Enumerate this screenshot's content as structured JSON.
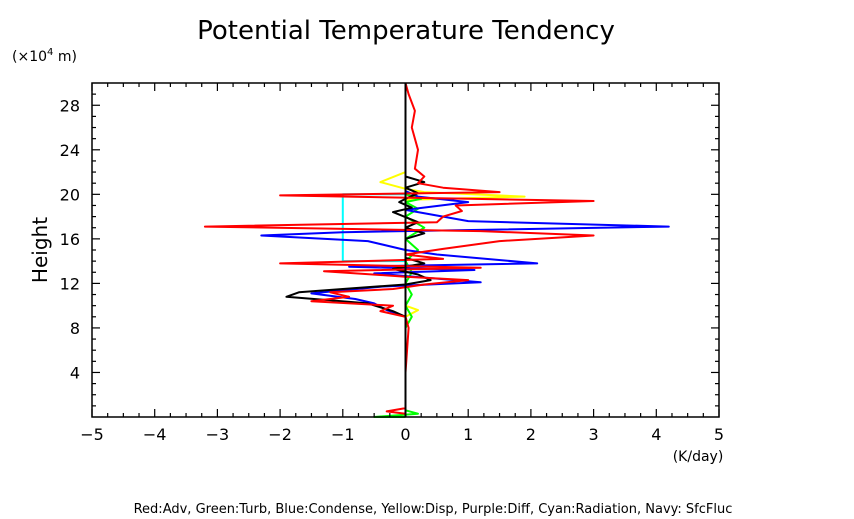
{
  "chart_data": {
    "type": "line",
    "title": "Potential Temperature Tendency",
    "ylabel": "Height",
    "yunit_base": "(×10",
    "yunit_exp": "4",
    "yunit_tail": " m)",
    "xlabel": "(K/day)",
    "xlim": [
      -5,
      5
    ],
    "ylim": [
      0,
      30
    ],
    "xticks": [
      -5,
      -4,
      -3,
      -2,
      -1,
      0,
      1,
      2,
      3,
      4,
      5
    ],
    "xtick_labels": [
      "−5",
      "−4",
      "−3",
      "−2",
      "−1",
      "0",
      "1",
      "2",
      "3",
      "4",
      "5"
    ],
    "yticks": [
      4,
      8,
      12,
      16,
      20,
      24,
      28
    ],
    "ytick_labels": [
      "4",
      "8",
      "12",
      "16",
      "20",
      "24",
      "28"
    ],
    "grid": false,
    "legend_text": "Red:Adv, Green:Turb, Blue:Condense, Yellow:Disp, Purple:Diff, Cyan:Radiation, Navy: SfcFluc",
    "series": [
      {
        "color": "#ffff00",
        "points": [
          [
            0,
            0
          ],
          [
            0,
            9
          ],
          [
            0.2,
            9.6
          ],
          [
            0,
            10
          ],
          [
            0,
            19.5
          ],
          [
            1.9,
            19.8
          ],
          [
            0.3,
            20.2
          ],
          [
            0,
            20.5
          ],
          [
            -0.4,
            21.1
          ],
          [
            0,
            22
          ],
          [
            0,
            30
          ]
        ]
      },
      {
        "color": "#00ff00",
        "points": [
          [
            0,
            0
          ],
          [
            -0.5,
            0
          ],
          [
            0.2,
            0.3
          ],
          [
            0,
            0.6
          ],
          [
            0,
            8
          ],
          [
            0.1,
            9
          ],
          [
            0,
            10
          ],
          [
            0.1,
            11
          ],
          [
            0,
            12
          ],
          [
            0.1,
            13
          ],
          [
            0,
            14
          ],
          [
            0.2,
            15
          ],
          [
            0,
            16
          ],
          [
            0.3,
            17
          ],
          [
            0,
            18
          ],
          [
            0.2,
            18.7
          ],
          [
            0,
            19.3
          ],
          [
            0.25,
            19.6
          ],
          [
            0,
            20
          ],
          [
            0,
            30
          ]
        ]
      },
      {
        "color": "#00ffff",
        "points": [
          [
            0,
            14
          ],
          [
            -1,
            14
          ],
          [
            -1,
            20
          ],
          [
            0,
            20
          ]
        ]
      },
      {
        "color": "#0000ff",
        "points": [
          [
            0,
            0
          ],
          [
            0,
            9
          ],
          [
            -0.3,
            9.6
          ],
          [
            -0.5,
            10.2
          ],
          [
            -0.8,
            10.6
          ],
          [
            -1.5,
            11.1
          ],
          [
            -0.4,
            11.7
          ],
          [
            1.2,
            12.1
          ],
          [
            -0.5,
            12.9
          ],
          [
            1.1,
            13.2
          ],
          [
            -0.9,
            13.5
          ],
          [
            2.1,
            13.8
          ],
          [
            0.5,
            14.6
          ],
          [
            0,
            15
          ],
          [
            -0.6,
            15.8
          ],
          [
            -2.3,
            16.3
          ],
          [
            -1,
            16.6
          ],
          [
            4.2,
            17.1
          ],
          [
            1,
            17.6
          ],
          [
            0.4,
            18.2
          ],
          [
            0,
            18.6
          ],
          [
            1,
            19.3
          ],
          [
            0.2,
            19.8
          ],
          [
            0,
            20.3
          ],
          [
            0,
            30
          ]
        ]
      },
      {
        "color": "#000000",
        "points": [
          [
            0,
            0
          ],
          [
            0,
            9
          ],
          [
            -0.2,
            9.5
          ],
          [
            -0.6,
            10.2
          ],
          [
            -1.9,
            10.8
          ],
          [
            -1.7,
            11.2
          ],
          [
            -1,
            11.5
          ],
          [
            0,
            11.9
          ],
          [
            0.4,
            12.3
          ],
          [
            0.2,
            12.8
          ],
          [
            -0.2,
            13.3
          ],
          [
            0.3,
            13.8
          ],
          [
            0,
            14.3
          ],
          [
            0,
            16
          ],
          [
            0.3,
            16.5
          ],
          [
            0,
            17
          ],
          [
            0.2,
            17.5
          ],
          [
            -0.2,
            18.4
          ],
          [
            0.1,
            18.8
          ],
          [
            -0.1,
            19.3
          ],
          [
            0,
            19.6
          ],
          [
            0.2,
            20.1
          ],
          [
            0,
            20.6
          ],
          [
            0.3,
            21.1
          ],
          [
            0,
            21.6
          ],
          [
            0,
            30
          ]
        ]
      },
      {
        "color": "#ff0000",
        "points": [
          [
            0,
            0
          ],
          [
            0,
            0.3
          ],
          [
            -0.3,
            0.5
          ],
          [
            0,
            0.8
          ],
          [
            0,
            4
          ],
          [
            0.05,
            8
          ],
          [
            0,
            9
          ],
          [
            -0.4,
            9.5
          ],
          [
            -0.2,
            10
          ],
          [
            -1.5,
            10.4
          ],
          [
            -0.9,
            10.8
          ],
          [
            -1.2,
            11.2
          ],
          [
            -0.2,
            11.5
          ],
          [
            0.3,
            11.9
          ],
          [
            1,
            12.3
          ],
          [
            0,
            12.6
          ],
          [
            -1.3,
            13.1
          ],
          [
            1.2,
            13.4
          ],
          [
            -2,
            13.8
          ],
          [
            0.6,
            14.2
          ],
          [
            0,
            14.6
          ],
          [
            0.6,
            15.1
          ],
          [
            1.5,
            15.8
          ],
          [
            3,
            16.3
          ],
          [
            1.2,
            16.7
          ],
          [
            -3.2,
            17.1
          ],
          [
            0.5,
            17.5
          ],
          [
            0.6,
            18
          ],
          [
            0.9,
            18.5
          ],
          [
            0.8,
            19
          ],
          [
            3,
            19.4
          ],
          [
            1,
            19.6
          ],
          [
            -2,
            19.9
          ],
          [
            1.5,
            20.2
          ],
          [
            0.6,
            20.6
          ],
          [
            0.2,
            21
          ],
          [
            0.3,
            21.6
          ],
          [
            0.15,
            22.3
          ],
          [
            0.2,
            24
          ],
          [
            0.1,
            26
          ],
          [
            0.15,
            27.5
          ],
          [
            0.05,
            29
          ],
          [
            0,
            30
          ]
        ]
      },
      {
        "color": "#000000",
        "points": [
          [
            0,
            0
          ],
          [
            0,
            30
          ]
        ]
      }
    ]
  }
}
